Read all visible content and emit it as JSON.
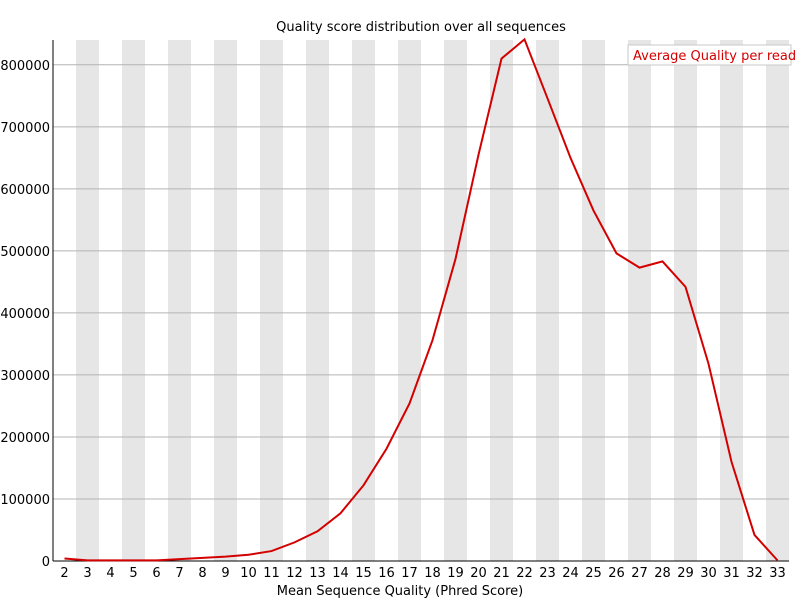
{
  "colors": {
    "background": "#ffffff",
    "band": "#e6e6e6",
    "grid": "#b4b4b4",
    "axis": "#000000",
    "series": "#d40000",
    "legend_border": "#c8c8c8"
  },
  "chart_data": {
    "type": "line",
    "title": "Quality score distribution over all sequences",
    "xlabel": "Mean Sequence Quality (Phred Score)",
    "ylabel": "",
    "x": [
      2,
      3,
      4,
      5,
      6,
      7,
      8,
      9,
      10,
      11,
      12,
      13,
      14,
      15,
      16,
      17,
      18,
      19,
      20,
      21,
      22,
      23,
      24,
      25,
      26,
      27,
      28,
      29,
      30,
      31,
      32,
      33
    ],
    "xlim": [
      1.5,
      33.5
    ],
    "ylim": [
      0,
      840000
    ],
    "y_ticks": [
      0,
      100000,
      200000,
      300000,
      400000,
      500000,
      600000,
      700000,
      800000
    ],
    "y_tick_labels": [
      "0",
      "100000",
      "200000",
      "300000",
      "400000",
      "500000",
      "600000",
      "700000",
      "800000"
    ],
    "alternating_bands": true,
    "grid": "horizontal",
    "legend_position": "top-right",
    "series": [
      {
        "name": "Average Quality per read",
        "values": [
          4000,
          1000,
          1000,
          1000,
          1000,
          3000,
          5000,
          7000,
          10000,
          16000,
          30000,
          48000,
          77000,
          122000,
          181000,
          254000,
          356000,
          487000,
          655000,
          810000,
          841000,
          746000,
          650000,
          565000,
          496000,
          473000,
          483000,
          442000,
          318000,
          160000,
          42000,
          1000
        ]
      }
    ]
  }
}
